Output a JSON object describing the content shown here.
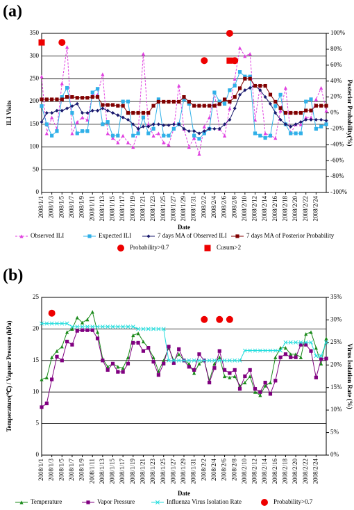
{
  "chart_data": [
    {
      "type": "line",
      "label": "(a)",
      "x_label": "Date",
      "y_label": "ILI Visits",
      "y2_label": "Posterior Probability(%)",
      "categories": [
        "2008/1/1",
        null,
        "2008/1/3",
        null,
        "2008/1/5",
        null,
        "2008/1/7",
        null,
        "2008/1/9",
        null,
        "2008/1/11",
        null,
        "2008/1/13",
        null,
        "2008/1/15",
        null,
        "2008/1/17",
        null,
        "2008/1/19",
        null,
        "2008/1/21",
        null,
        "2008/1/23",
        null,
        "2008/1/25",
        null,
        "2008/1/27",
        null,
        "2008/1/29",
        null,
        "2008/1/31",
        null,
        "2008/2/2",
        null,
        "2008/2/4",
        null,
        "2008/2/6",
        null,
        "2008/2/8",
        null,
        "2008/2/10",
        null,
        "2008/2/12",
        null,
        "2008/2/14",
        null,
        "2008/2/16",
        null,
        "2008/2/18",
        null,
        "2008/2/20",
        null,
        "2008/2/22",
        null,
        "2008/2/24",
        null,
        null
      ],
      "ylim": [
        0,
        350
      ],
      "yticks": [
        0,
        50,
        100,
        150,
        200,
        250,
        300,
        350
      ],
      "y2lim": [
        -100,
        100
      ],
      "y2ticks": [
        {
          "value": -100,
          "label": "-100%"
        },
        {
          "value": -80,
          "label": "-80%"
        },
        {
          "value": -60,
          "label": "-60%"
        },
        {
          "value": -40,
          "label": "-40%"
        },
        {
          "value": -20,
          "label": "-20%"
        },
        {
          "value": 0,
          "label": "0%"
        },
        {
          "value": 20,
          "label": "20%"
        },
        {
          "value": 40,
          "label": "40%"
        },
        {
          "value": 60,
          "label": "60%"
        },
        {
          "value": 80,
          "label": "80%"
        },
        {
          "value": 100,
          "label": "100%"
        }
      ],
      "grid": true,
      "series": [
        {
          "name": "Observed ILI",
          "color": "#e040e0",
          "marker": "triangle",
          "dash": true,
          "values": [
            255,
            130,
            165,
            140,
            240,
            320,
            130,
            155,
            165,
            160,
            215,
            215,
            260,
            130,
            120,
            110,
            125,
            110,
            100,
            135,
            305,
            150,
            125,
            130,
            110,
            105,
            140,
            235,
            140,
            100,
            120,
            85,
            145,
            165,
            220,
            140,
            125,
            185,
            250,
            318,
            300,
            305,
            160,
            235,
            130,
            125,
            120,
            180,
            230,
            130,
            150,
            150,
            165,
            165,
            205,
            230,
            180
          ]
        },
        {
          "name": "Expected ILI",
          "color": "#30b0e8",
          "marker": "square",
          "values": [
            190,
            150,
            125,
            135,
            210,
            230,
            175,
            130,
            135,
            135,
            220,
            228,
            150,
            155,
            125,
            125,
            200,
            200,
            125,
            130,
            165,
            130,
            140,
            205,
            125,
            125,
            140,
            150,
            205,
            195,
            125,
            118,
            130,
            140,
            220,
            200,
            195,
            225,
            235,
            265,
            255,
            255,
            130,
            125,
            120,
            125,
            190,
            215,
            150,
            130,
            130,
            130,
            200,
            205,
            140,
            145,
            150
          ]
        },
        {
          "name": "7 days MA of Observed ILI",
          "color": "#1a1a6e",
          "marker": "diamond",
          "values": [
            155,
            175,
            175,
            180,
            180,
            185,
            190,
            195,
            175,
            175,
            180,
            180,
            185,
            180,
            175,
            170,
            165,
            160,
            150,
            140,
            145,
            145,
            150,
            150,
            148,
            148,
            150,
            150,
            140,
            135,
            135,
            130,
            135,
            140,
            140,
            140,
            150,
            160,
            185,
            215,
            225,
            230,
            235,
            225,
            210,
            195,
            175,
            160,
            150,
            145,
            150,
            155,
            160,
            160,
            160,
            160,
            158
          ]
        },
        {
          "name": "7 days MA of Posterior Probability",
          "color": "#800000",
          "marker": "square",
          "axis": "y2",
          "values": [
            17,
            17,
            17,
            17,
            17,
            20,
            20,
            19,
            19,
            19,
            20,
            20,
            10,
            10,
            10,
            9,
            9,
            0,
            0,
            0,
            0,
            0,
            9,
            14,
            14,
            14,
            14,
            14,
            20,
            14,
            9,
            9,
            9,
            9,
            9,
            11,
            17,
            14,
            20,
            31,
            43,
            43,
            34,
            34,
            34,
            23,
            14,
            6,
            0,
            0,
            0,
            0,
            3,
            3,
            9,
            9,
            9
          ]
        },
        {
          "name": "Probability>0.7",
          "color": "#ee0000",
          "marker": "circle",
          "line": false,
          "values": [
            null,
            null,
            null,
            null,
            330,
            null,
            null,
            null,
            null,
            null,
            null,
            null,
            null,
            null,
            null,
            null,
            null,
            null,
            null,
            null,
            null,
            null,
            null,
            null,
            null,
            null,
            null,
            null,
            null,
            null,
            null,
            null,
            290,
            null,
            null,
            null,
            null,
            350,
            290,
            null,
            null,
            null,
            null,
            null,
            null,
            null,
            null,
            null,
            null,
            null,
            null,
            null,
            null,
            null,
            null,
            null,
            null
          ]
        },
        {
          "name": "Cusum>2",
          "color": "#ee0000",
          "marker": "bigsquare",
          "line": false,
          "values": [
            330,
            null,
            null,
            null,
            null,
            null,
            null,
            null,
            null,
            null,
            null,
            null,
            null,
            null,
            null,
            null,
            null,
            null,
            null,
            null,
            null,
            null,
            null,
            null,
            null,
            null,
            null,
            null,
            null,
            null,
            null,
            null,
            null,
            null,
            null,
            null,
            null,
            290,
            null,
            null,
            null,
            null,
            null,
            null,
            null,
            null,
            null,
            null,
            null,
            null,
            null,
            null,
            null,
            null,
            null,
            null,
            null
          ]
        }
      ]
    },
    {
      "type": "line",
      "label": "(b)",
      "x_label": "Date",
      "y_label": "Temperature(℃) / Vapour Pressure (hPa)",
      "y2_label": "Virus Isolation Rate (%)",
      "categories": [
        "2008/1/1",
        null,
        "2008/1/3",
        null,
        "2008/1/5",
        null,
        "2008/1/7",
        null,
        "2008/1/9",
        null,
        "2008/1/11",
        null,
        "2008/1/13",
        null,
        "2008/1/15",
        null,
        "2008/1/17",
        null,
        "2008/1/19",
        null,
        "2008/1/21",
        null,
        "2008/1/23",
        null,
        "2008/1/25",
        null,
        "2008/1/27",
        null,
        "2008/1/29",
        null,
        "2008/1/31",
        null,
        "2008/2/2",
        null,
        "2008/2/4",
        null,
        "2008/2/6",
        null,
        "2008/2/8",
        null,
        "2008/2/10",
        null,
        "2008/2/12",
        null,
        "2008/2/14",
        null,
        "2008/2/16",
        null,
        "2008/2/18",
        null,
        "2008/2/20",
        null,
        "2008/2/22",
        null,
        "2008/2/24",
        null,
        null
      ],
      "ylim": [
        0,
        25
      ],
      "yticks": [
        0,
        5,
        10,
        15,
        20,
        25
      ],
      "y2lim": [
        0,
        35
      ],
      "y2ticks": [
        {
          "value": 0,
          "label": "0%"
        },
        {
          "value": 5,
          "label": "5%"
        },
        {
          "value": 10,
          "label": "10%"
        },
        {
          "value": 15,
          "label": "15%"
        },
        {
          "value": 20,
          "label": "20%"
        },
        {
          "value": 25,
          "label": "25%"
        },
        {
          "value": 30,
          "label": "30%"
        },
        {
          "value": 35,
          "label": "35%"
        }
      ],
      "grid": true,
      "series": [
        {
          "name": "Temperature",
          "color": "#1a8a1a",
          "marker": "triangle",
          "values": [
            12,
            12.3,
            15.5,
            16.5,
            17.2,
            19.5,
            20,
            21.8,
            21,
            21.5,
            22.7,
            19.5,
            15.3,
            14,
            14.5,
            14,
            13.8,
            15.5,
            19,
            19.3,
            18,
            17,
            15.5,
            13.3,
            15,
            17,
            15,
            16,
            15,
            14.5,
            13,
            14.5,
            15,
            11.8,
            14.5,
            15.5,
            12.5,
            12.3,
            12.5,
            11,
            11.5,
            12.5,
            10,
            9.5,
            11,
            11.5,
            15.5,
            17,
            17,
            16,
            16,
            15.5,
            19.2,
            19.5,
            17,
            14.5,
            18.5
          ]
        },
        {
          "name": "Vapor Pressure",
          "color": "#800080",
          "marker": "square",
          "values": [
            7.6,
            8.2,
            12,
            15.6,
            15,
            18,
            17.5,
            19.7,
            19.8,
            19.8,
            19.8,
            18.5,
            15,
            13.5,
            14.5,
            13.2,
            13.2,
            14.5,
            17.8,
            17.8,
            16.5,
            17,
            14.8,
            12.7,
            14.5,
            17.2,
            14.6,
            16.8,
            15,
            14,
            13.5,
            16,
            15,
            11.5,
            13.8,
            16.5,
            13.5,
            13,
            13.5,
            10.5,
            12.5,
            13.5,
            10.5,
            10,
            11.5,
            9.7,
            11.8,
            15.5,
            16,
            15.5,
            15.5,
            17.5,
            17.5,
            16.5,
            12.3,
            15.2,
            15.3
          ]
        },
        {
          "name": "Influenza Virus Isolation Rate",
          "color": "#22dddd",
          "marker": "cross",
          "axis": "y2",
          "values": [
            29.2,
            29.2,
            29.2,
            29.2,
            29.2,
            29.2,
            28.5,
            28.5,
            28.5,
            28.5,
            28.5,
            28.5,
            28.5,
            28.5,
            28.5,
            28.5,
            28.5,
            28.5,
            28.5,
            28,
            28,
            28,
            28,
            28,
            28,
            21,
            21,
            21,
            21,
            21,
            21,
            21,
            21,
            21,
            21,
            21,
            21,
            21,
            21,
            21,
            23.2,
            23.2,
            23.2,
            23.2,
            23.2,
            23.2,
            23.2,
            23.2,
            25,
            25,
            25,
            25,
            25,
            25,
            22,
            22,
            25
          ]
        },
        {
          "name": "Probability>0.7",
          "color": "#ee0000",
          "marker": "circle",
          "line": false,
          "values": [
            null,
            null,
            22.5,
            null,
            null,
            null,
            null,
            null,
            null,
            null,
            null,
            null,
            null,
            null,
            null,
            null,
            null,
            null,
            null,
            null,
            null,
            null,
            null,
            null,
            null,
            null,
            null,
            null,
            null,
            null,
            null,
            null,
            21.5,
            null,
            null,
            21.5,
            null,
            21.5,
            null,
            null,
            null,
            null,
            null,
            null,
            null,
            null,
            null,
            null,
            null,
            null,
            null,
            null,
            null,
            null,
            null,
            null,
            null
          ]
        }
      ]
    }
  ]
}
